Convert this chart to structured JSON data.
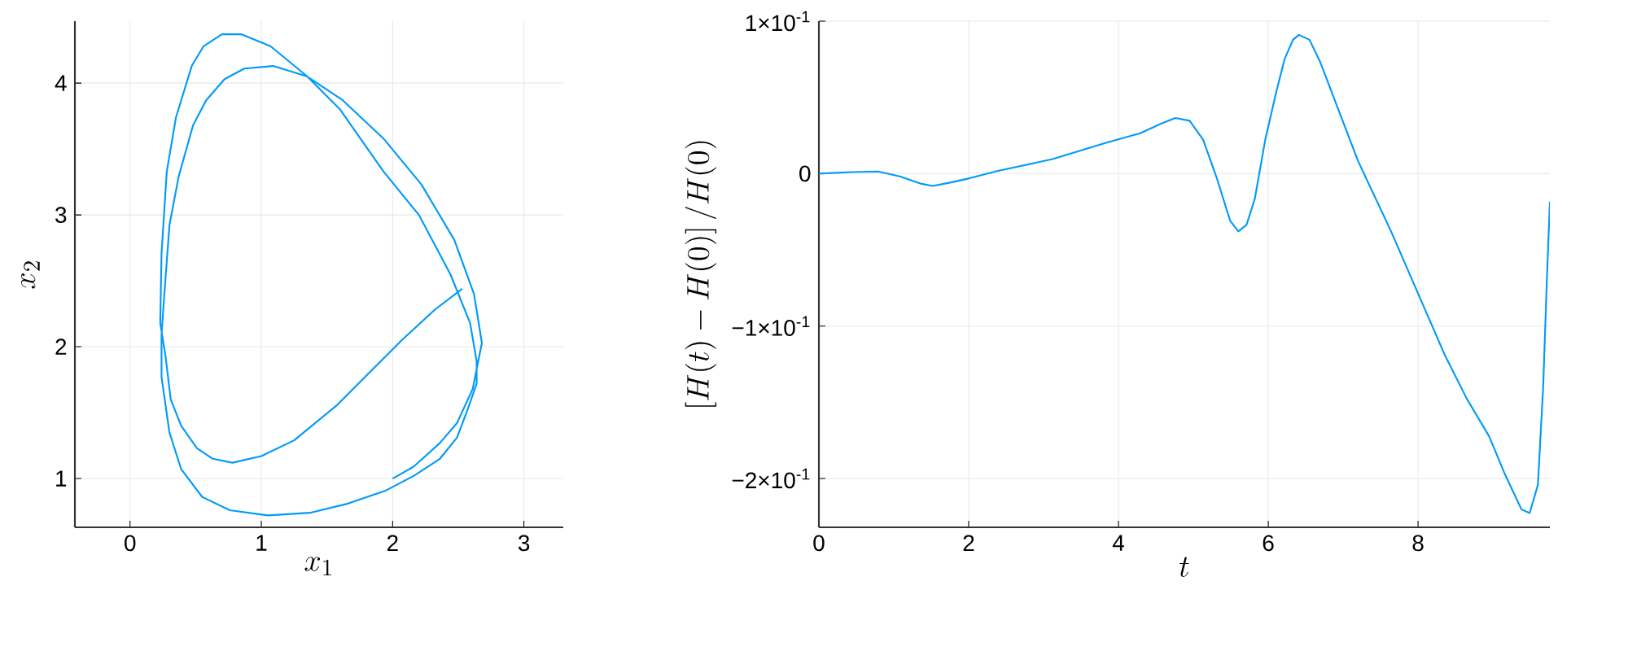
{
  "chart_data": [
    {
      "type": "line",
      "xlabel": "x_1",
      "ylabel": "x_2",
      "color": "#009af9",
      "grid": true,
      "xlim": [
        -0.42,
        3.3
      ],
      "ylim": [
        0.63,
        4.47
      ],
      "xticks": [
        0,
        1,
        2,
        3
      ],
      "yticks": [
        1,
        2,
        3,
        4
      ],
      "x": [
        2.0,
        2.16,
        2.36,
        2.49,
        2.61,
        2.68,
        2.62,
        2.47,
        2.22,
        1.93,
        1.62,
        1.35,
        1.09,
        0.87,
        0.72,
        0.58,
        0.48,
        0.37,
        0.3,
        0.26,
        0.24,
        0.24,
        0.3,
        0.39,
        0.55,
        0.76,
        1.05,
        1.37,
        1.66,
        1.95,
        2.16,
        2.36,
        2.49,
        2.57,
        2.64,
        2.64,
        2.59,
        2.44,
        2.2,
        1.93,
        1.6,
        1.35,
        1.07,
        0.85,
        0.7,
        0.56,
        0.47,
        0.35,
        0.28,
        0.24,
        0.23,
        0.27,
        0.31,
        0.39,
        0.51,
        0.63,
        0.78,
        1.0,
        1.25,
        1.58,
        1.83,
        2.07,
        2.32,
        2.53
      ],
      "values": [
        1.0,
        1.09,
        1.27,
        1.42,
        1.68,
        2.03,
        2.4,
        2.81,
        3.23,
        3.58,
        3.87,
        4.05,
        4.13,
        4.11,
        4.03,
        3.87,
        3.68,
        3.29,
        2.92,
        2.38,
        2.09,
        1.77,
        1.35,
        1.07,
        0.86,
        0.76,
        0.72,
        0.74,
        0.81,
        0.91,
        1.02,
        1.15,
        1.31,
        1.52,
        1.72,
        1.89,
        2.18,
        2.55,
        3.0,
        3.33,
        3.8,
        4.05,
        4.28,
        4.37,
        4.37,
        4.28,
        4.13,
        3.74,
        3.33,
        2.71,
        2.18,
        1.93,
        1.6,
        1.4,
        1.23,
        1.15,
        1.12,
        1.17,
        1.29,
        1.56,
        1.81,
        2.05,
        2.28,
        2.44
      ]
    },
    {
      "type": "line",
      "xlabel": "t",
      "ylabel": "\\left[H(t) - H(0)\\right] / H(0)",
      "color": "#009af9",
      "grid": true,
      "xlim": [
        0,
        9.76
      ],
      "ylim": [
        -0.232,
        0.1
      ],
      "xticks": [
        0,
        2,
        4,
        6,
        8
      ],
      "yticks": [
        {
          "value": 0.1,
          "label": "1×10$^{-1}$"
        },
        {
          "value": 0,
          "label": "0"
        },
        {
          "value": -0.1,
          "label": "−1×10$^{-1}$"
        },
        {
          "value": -0.2,
          "label": "−2×10$^{-1}$"
        }
      ],
      "x": [
        0,
        0.43,
        0.79,
        1.08,
        1.37,
        1.52,
        1.74,
        2.0,
        2.39,
        3.12,
        3.85,
        4.29,
        4.58,
        4.76,
        4.95,
        5.13,
        5.31,
        5.49,
        5.6,
        5.71,
        5.82,
        5.96,
        6.11,
        6.22,
        6.33,
        6.41,
        6.55,
        6.69,
        6.91,
        7.2,
        7.64,
        8.0,
        8.36,
        8.65,
        8.95,
        9.16,
        9.38,
        9.49,
        9.6,
        9.67,
        9.72,
        9.76
      ],
      "values": [
        0,
        0.001,
        0.0014,
        -0.0018,
        -0.0067,
        -0.0081,
        -0.006,
        -0.0032,
        0.0018,
        0.0095,
        0.0205,
        0.0265,
        0.033,
        0.0365,
        0.0347,
        0.0223,
        -0.0025,
        -0.0308,
        -0.0379,
        -0.0336,
        -0.0166,
        0.0223,
        0.0542,
        0.0754,
        0.0878,
        0.091,
        0.0878,
        0.0736,
        0.0453,
        0.0081,
        -0.0379,
        -0.0786,
        -0.1193,
        -0.1476,
        -0.1724,
        -0.1972,
        -0.2202,
        -0.2227,
        -0.2042,
        -0.1405,
        -0.0697,
        -0.0184
      ]
    }
  ]
}
